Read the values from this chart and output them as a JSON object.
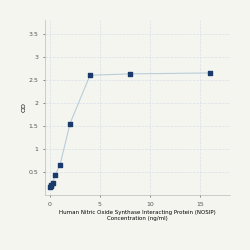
{
  "x": [
    0,
    0.0625,
    0.125,
    0.25,
    0.5,
    1,
    2,
    4,
    8,
    16
  ],
  "y": [
    0.18,
    0.19,
    0.21,
    0.25,
    0.43,
    0.65,
    1.55,
    2.6,
    2.63,
    2.65
  ],
  "line_color": "#b8cdd8",
  "marker_color": "#1a3a6b",
  "marker_size": 3.5,
  "xlabel_line1": "Human Nitric Oxide Synthase Interacting Protein (NOSIP)",
  "xlabel_line2": "Concentration (ng/ml)",
  "ylabel": "OD",
  "ylim": [
    0,
    3.8
  ],
  "xlim": [
    -0.5,
    18
  ],
  "yticks": [
    0.5,
    1,
    1.5,
    2,
    2.5,
    3,
    3.5
  ],
  "xticks": [
    0,
    5,
    10,
    15
  ],
  "xticklabels": [
    "0",
    "5",
    "10",
    "15"
  ],
  "grid_color": "#d8e0e8",
  "background_color": "#f5f5f0",
  "label_fontsize": 4.5,
  "tick_fontsize": 4.5
}
